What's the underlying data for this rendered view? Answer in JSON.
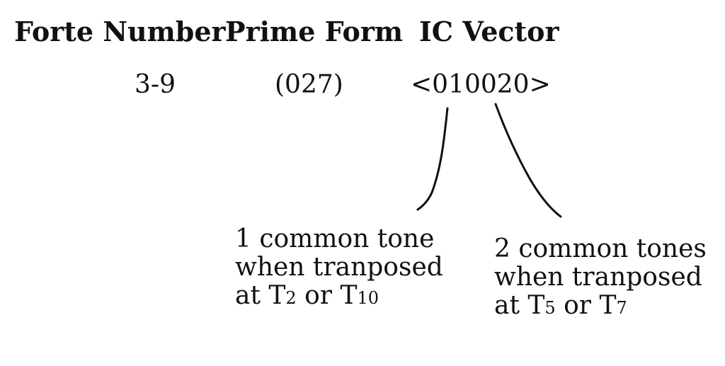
{
  "headers": {
    "forte": "Forte Number",
    "prime": "Prime Form",
    "ic": "IC Vector"
  },
  "values": {
    "forte": "3-9",
    "prime": "(027)",
    "ic": "<010020>"
  },
  "annotations": {
    "left": {
      "line1": "1 common tone",
      "line2": "when tranposed",
      "line3_prefix": "at T",
      "sub1": "2",
      "mid": " or T",
      "sub2": "10"
    },
    "right": {
      "line1": "2 common tones",
      "line2": "when tranposed",
      "line3_prefix": "at T",
      "sub1": "5",
      "mid": " or T",
      "sub2": "7"
    }
  }
}
